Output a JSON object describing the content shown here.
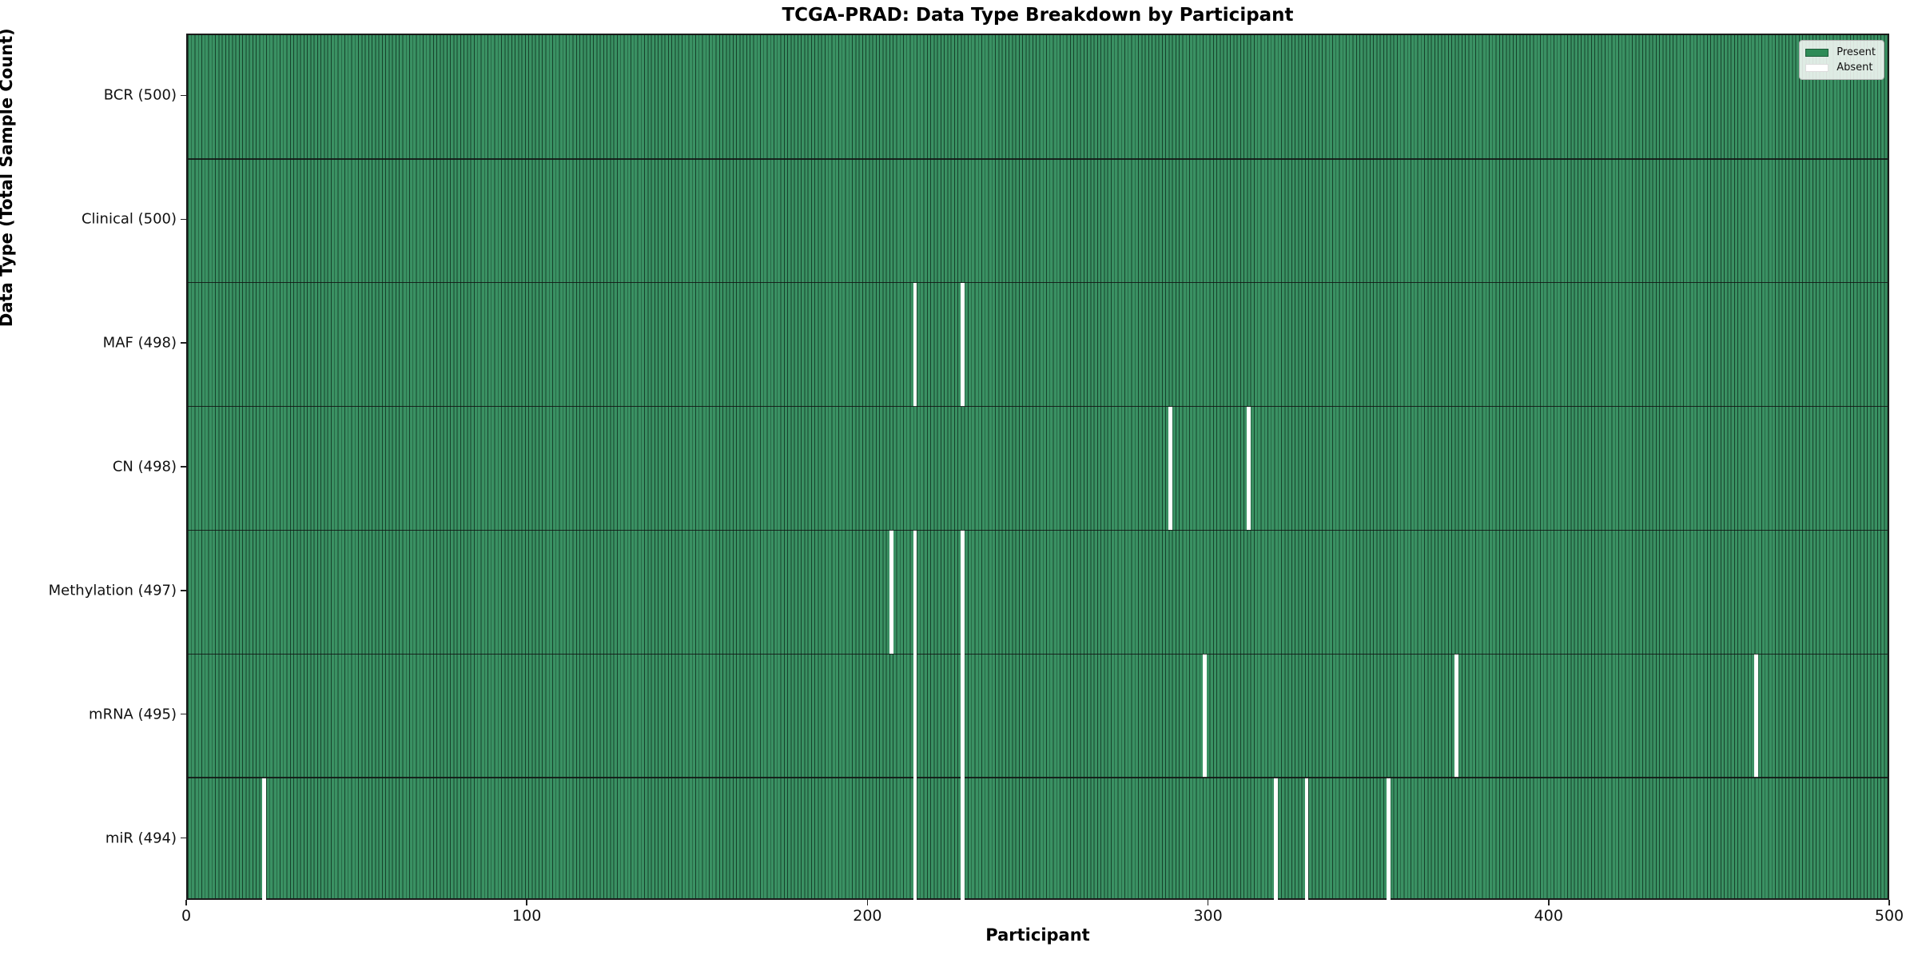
{
  "chart_data": {
    "type": "heatmap",
    "title": "TCGA-PRAD: Data Type Breakdown by Participant",
    "xlabel": "Participant",
    "ylabel": "Data Type (Total Sample Count)",
    "x_range": [
      0,
      500
    ],
    "x_ticks": [
      0,
      100,
      200,
      300,
      400,
      500
    ],
    "n_participants": 500,
    "grid": false,
    "legend_position": "upper right",
    "legend": [
      {
        "label": "Present",
        "color": "#2e8b57"
      },
      {
        "label": "Absent",
        "color": "#ffffff"
      }
    ],
    "rows": [
      {
        "label": "BCR (500)",
        "data_type": "BCR",
        "total": 500,
        "absent_participants": []
      },
      {
        "label": "Clinical (500)",
        "data_type": "Clinical",
        "total": 500,
        "absent_participants": []
      },
      {
        "label": "MAF (498)",
        "data_type": "MAF",
        "total": 498,
        "absent_participants": [
          213,
          227
        ]
      },
      {
        "label": "CN (498)",
        "data_type": "CN",
        "total": 498,
        "absent_participants": [
          288,
          311
        ]
      },
      {
        "label": "Methylation (497)",
        "data_type": "Methylation",
        "total": 497,
        "absent_participants": [
          206,
          213,
          227
        ]
      },
      {
        "label": "mRNA (495)",
        "data_type": "mRNA",
        "total": 495,
        "absent_participants": [
          213,
          227,
          298,
          372,
          460
        ]
      },
      {
        "label": "miR (494)",
        "data_type": "miR",
        "total": 494,
        "absent_participants": [
          22,
          213,
          227,
          319,
          328,
          352
        ]
      }
    ],
    "colors": {
      "present_fill": "#2e8b57",
      "present_fill_rendered": "#3a9163",
      "bar_edge": "#16422b",
      "absent_fill": "#ffffff",
      "row_separator": "#121212",
      "spine": "#1a1a1a"
    }
  }
}
